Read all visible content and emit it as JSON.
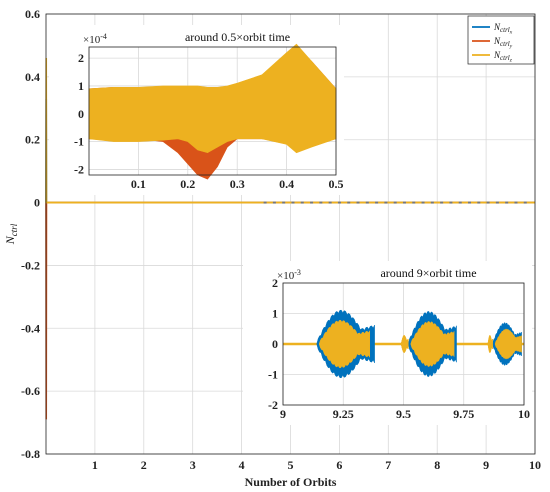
{
  "chart_data": [
    {
      "type": "line",
      "title": "",
      "xlabel": "Number of Orbits",
      "ylabel": "N_ctrl",
      "ylabel_text": "N",
      "ylabel_sub": "ctrl",
      "xlim": [
        0,
        10
      ],
      "ylim": [
        -0.8,
        0.6
      ],
      "xticks": [
        1,
        2,
        3,
        4,
        5,
        6,
        7,
        8,
        9,
        10
      ],
      "yticks": [
        -0.8,
        -0.6,
        -0.4,
        -0.2,
        0,
        0.2,
        0.4,
        0.6
      ],
      "ytick_labels": [
        "-0.8",
        "-0.6",
        "-0.4",
        "-0.2",
        "0",
        "0.2",
        "0.4",
        "0.6"
      ],
      "grid": true,
      "legend": "top-right",
      "series": [
        {
          "name": "N_ctrl_x",
          "label": "N",
          "sub": "ctrl",
          "subsub": "x",
          "color": "#0072BD",
          "x": [
            0,
            0.005,
            0.01,
            10
          ],
          "y": [
            0,
            0.33,
            0,
            0
          ]
        },
        {
          "name": "N_ctrl_y",
          "label": "N",
          "sub": "ctrl",
          "subsub": "y",
          "color": "#D95319",
          "x": [
            0,
            0.005,
            0.01,
            10
          ],
          "y": [
            0,
            -0.69,
            0,
            0
          ]
        },
        {
          "name": "N_ctrl_z",
          "label": "N",
          "sub": "ctrl",
          "subsub": "z",
          "color": "#EDB120",
          "x": [
            0,
            0.005,
            0.01,
            10
          ],
          "y": [
            0,
            0.46,
            0,
            0
          ]
        }
      ]
    },
    {
      "type": "line",
      "title": "around 0.5×orbit time",
      "xlim": [
        0,
        0.5
      ],
      "ylim": [
        -2.2,
        2.4
      ],
      "scale_label": "×10",
      "scale_exp": "-4",
      "xticks": [
        0.1,
        0.2,
        0.3,
        0.4,
        0.5
      ],
      "xtick_labels": [
        "0.1",
        "0.2",
        "0.3",
        "0.4",
        "0.5"
      ],
      "yticks": [
        -2,
        -1,
        0,
        1,
        2
      ],
      "ytick_labels": [
        "-2",
        "-1",
        "0",
        "1",
        "2"
      ],
      "grid": true,
      "series": [
        {
          "name": "N_ctrl_y",
          "color": "#D95319",
          "x": [
            0,
            0.05,
            0.1,
            0.15,
            0.18,
            0.2,
            0.22,
            0.24,
            0.26,
            0.28,
            0.3,
            0.35,
            0.4,
            0.42,
            0.45,
            0.5
          ],
          "upper": [
            0.9,
            0.95,
            0.9,
            0.9,
            0.85,
            0.8,
            0.6,
            0.7,
            0.8,
            0.85,
            0.9,
            1.0,
            2.0,
            2.3,
            1.9,
            0.9
          ],
          "lower": [
            -0.9,
            -0.95,
            -0.9,
            -1.0,
            -1.4,
            -1.8,
            -2.2,
            -2.35,
            -1.9,
            -1.2,
            -0.9,
            -0.9,
            -1.0,
            -1.2,
            -1.0,
            -0.9
          ]
        },
        {
          "name": "N_ctrl_z",
          "color": "#EDB120",
          "x": [
            0,
            0.05,
            0.1,
            0.15,
            0.18,
            0.2,
            0.22,
            0.24,
            0.26,
            0.28,
            0.3,
            0.35,
            0.4,
            0.42,
            0.45,
            0.5
          ],
          "upper": [
            0.9,
            0.95,
            0.95,
            1.0,
            1.0,
            1.0,
            1.0,
            0.95,
            0.95,
            1.0,
            1.1,
            1.4,
            2.2,
            2.5,
            1.9,
            0.9
          ],
          "lower": [
            -0.9,
            -1.0,
            -1.0,
            -0.95,
            -0.9,
            -1.0,
            -1.3,
            -1.4,
            -1.2,
            -1.0,
            -0.9,
            -0.9,
            -1.1,
            -1.4,
            -1.2,
            -0.9
          ]
        }
      ]
    },
    {
      "type": "line",
      "title": "around 9×orbit time",
      "xlim": [
        9,
        10
      ],
      "ylim": [
        -2,
        2
      ],
      "scale_label": "×10",
      "scale_exp": "-3",
      "xticks": [
        9,
        9.25,
        9.5,
        9.75,
        10
      ],
      "xtick_labels": [
        "9",
        "9.25",
        "9.5",
        "9.75",
        "10"
      ],
      "yticks": [
        -2,
        -1,
        0,
        1,
        2
      ],
      "ytick_labels": [
        "-2",
        "-1",
        "0",
        "1",
        "2"
      ],
      "grid": true,
      "series": [
        {
          "name": "N_ctrl_x",
          "color": "#0072BD",
          "bursts": [
            [
              9.14,
              9.38,
              1.35
            ],
            [
              9.52,
              9.72,
              1.3
            ],
            [
              9.87,
              9.99,
              0.85
            ]
          ]
        },
        {
          "name": "N_ctrl_z",
          "color": "#EDB120",
          "bursts": [
            [
              9.15,
              9.36,
              0.95
            ],
            [
              9.49,
              9.52,
              0.35
            ],
            [
              9.53,
              9.71,
              0.9
            ],
            [
              9.85,
              9.87,
              0.35
            ],
            [
              9.88,
              9.99,
              0.6
            ]
          ]
        }
      ]
    }
  ]
}
